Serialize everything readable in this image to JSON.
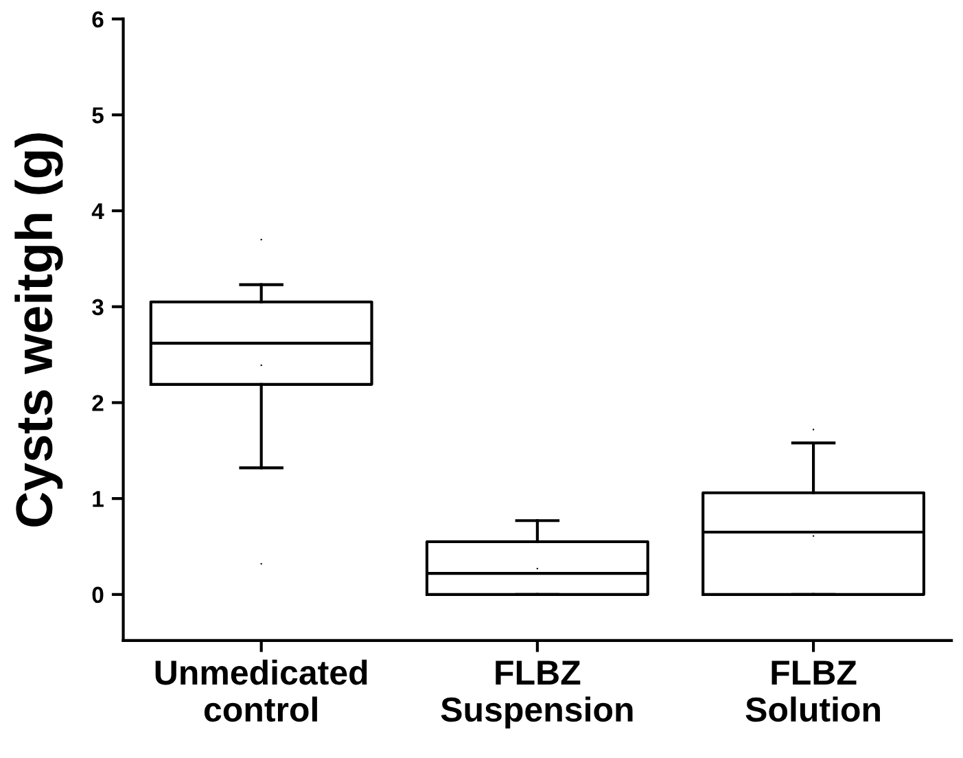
{
  "chart_data": {
    "type": "box",
    "ylabel": "Cysts weitgh (g)",
    "categories": [
      "Unmedicated\ncontrol",
      "FLBZ\nSuspension",
      "FLBZ\nSolution"
    ],
    "boxes": [
      {
        "low": 1.32,
        "q1": 2.19,
        "median": 2.62,
        "q3": 3.05,
        "high": 3.23,
        "mean": 2.39,
        "outliers": [
          3.7,
          0.32
        ]
      },
      {
        "low": 0,
        "q1": 0,
        "median": 0.22,
        "q3": 0.55,
        "high": 0.77,
        "mean": 0.27
      },
      {
        "low": 0,
        "q1": 0,
        "median": 0.65,
        "q3": 1.06,
        "high": 1.58,
        "mean": 0.61,
        "outliers": [
          1.72
        ]
      }
    ],
    "color": "#000000",
    "ylim": [
      -0.48,
      6
    ],
    "yticks": [
      0,
      1,
      2,
      3,
      4,
      5,
      6
    ],
    "grid": false
  }
}
